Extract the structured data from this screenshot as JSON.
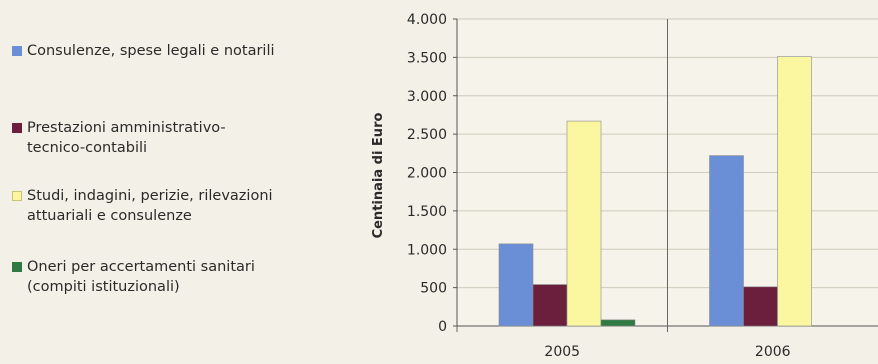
{
  "chart_data": {
    "type": "bar",
    "title": "",
    "xlabel": "",
    "ylabel": "Centinaia di Euro",
    "ylim": [
      0,
      4000
    ],
    "yticks": [
      0,
      500,
      1000,
      1500,
      2000,
      2500,
      3000,
      3500,
      4000
    ],
    "ytick_labels": [
      "0",
      "500",
      "1.000",
      "1.500",
      "2.000",
      "2.500",
      "3.000",
      "3.500",
      "4.000"
    ],
    "categories": [
      "2005",
      "2006"
    ],
    "grid": true,
    "legend_position": "left",
    "series": [
      {
        "name": "Consulenze, spese legali e notarili",
        "color": "#6b8fd6",
        "values": [
          1070,
          2220
        ]
      },
      {
        "name": "Prestazioni amministrativo-tecnico-contabili",
        "color": "#6b1f3d",
        "values": [
          540,
          510
        ]
      },
      {
        "name": "Studi, indagini, perizie, rilevazioni attuariali e consulenze",
        "color": "#fbf6a0",
        "values": [
          2670,
          3510
        ]
      },
      {
        "name": "Oneri per accertamenti sanitari (compiti istituzionali)",
        "color": "#2f7a43",
        "values": [
          80,
          0
        ]
      }
    ]
  }
}
